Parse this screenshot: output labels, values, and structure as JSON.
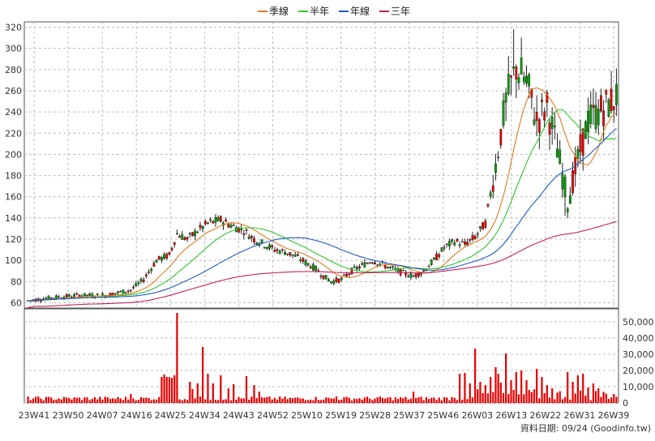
{
  "chart_data": [
    {
      "type": "candlestick",
      "legend_position": "top-center",
      "series": [
        {
          "name": "季線",
          "color": "#e07b20"
        },
        {
          "name": "半年",
          "color": "#2fc42f"
        },
        {
          "name": "年線",
          "color": "#1f5bc4"
        },
        {
          "name": "三年",
          "color": "#c8205a"
        }
      ],
      "up_color": "#e60000",
      "down_color": "#009900",
      "ylim": [
        55,
        325
      ],
      "y_ticks": [
        60,
        80,
        100,
        120,
        140,
        160,
        180,
        200,
        220,
        240,
        260,
        280,
        300,
        320
      ],
      "grid": true,
      "x_ticks": [
        "23W41",
        "23W50",
        "24W07",
        "24W16",
        "24W25",
        "24W34",
        "24W43",
        "24W52",
        "25W10",
        "25W19",
        "25W28",
        "25W37",
        "25W46",
        "26W03",
        "26W13",
        "26W22",
        "26W31",
        "26W39"
      ],
      "price_path": [
        [
          0,
          62
        ],
        [
          10,
          65
        ],
        [
          20,
          67
        ],
        [
          30,
          67
        ],
        [
          40,
          72
        ],
        [
          45,
          82
        ],
        [
          50,
          100
        ],
        [
          55,
          105
        ],
        [
          58,
          125
        ],
        [
          62,
          120
        ],
        [
          66,
          128
        ],
        [
          70,
          135
        ],
        [
          75,
          138
        ],
        [
          80,
          132
        ],
        [
          84,
          128
        ],
        [
          88,
          120
        ],
        [
          92,
          115
        ],
        [
          96,
          110
        ],
        [
          100,
          108
        ],
        [
          104,
          104
        ],
        [
          108,
          98
        ],
        [
          112,
          92
        ],
        [
          115,
          85
        ],
        [
          118,
          80
        ],
        [
          122,
          82
        ],
        [
          126,
          90
        ],
        [
          130,
          95
        ],
        [
          134,
          100
        ],
        [
          138,
          96
        ],
        [
          142,
          92
        ],
        [
          146,
          88
        ],
        [
          150,
          85
        ],
        [
          154,
          90
        ],
        [
          158,
          100
        ],
        [
          162,
          112
        ],
        [
          166,
          118
        ],
        [
          170,
          115
        ],
        [
          174,
          122
        ],
        [
          178,
          135
        ],
        [
          182,
          190
        ],
        [
          186,
          250
        ],
        [
          190,
          282
        ],
        [
          194,
          268
        ],
        [
          198,
          232
        ],
        [
          202,
          245
        ],
        [
          206,
          205
        ],
        [
          210,
          155
        ],
        [
          214,
          195
        ],
        [
          218,
          232
        ],
        [
          222,
          240
        ],
        [
          226,
          248
        ],
        [
          229,
          255
        ]
      ],
      "weekly_candle_count": 230,
      "last_label": "26W39",
      "volume": {
        "ylim": [
          0,
          56000
        ],
        "y_ticks": [
          0,
          10000,
          20000,
          30000,
          40000,
          50000
        ],
        "y_tick_labels": [
          "0",
          "10,000",
          "20,000",
          "30,000",
          "40,000",
          "50,000"
        ],
        "color": "#e60000",
        "spikes": [
          [
            40,
            5500
          ],
          [
            52,
            16000
          ],
          [
            53,
            17500
          ],
          [
            54,
            16000
          ],
          [
            55,
            16000
          ],
          [
            56,
            15500
          ],
          [
            57,
            17000
          ],
          [
            58,
            55500
          ],
          [
            63,
            13000
          ],
          [
            64,
            8500
          ],
          [
            66,
            12000
          ],
          [
            68,
            34500
          ],
          [
            70,
            18000
          ],
          [
            72,
            12000
          ],
          [
            75,
            17000
          ],
          [
            78,
            9000
          ],
          [
            80,
            11500
          ],
          [
            85,
            16500
          ],
          [
            88,
            11000
          ],
          [
            90,
            7000
          ],
          [
            120,
            4000
          ],
          [
            150,
            7000
          ],
          [
            165,
            3500
          ],
          [
            168,
            18000
          ],
          [
            170,
            18500
          ],
          [
            172,
            12000
          ],
          [
            174,
            33500
          ],
          [
            176,
            13000
          ],
          [
            178,
            11000
          ],
          [
            180,
            16000
          ],
          [
            182,
            22000
          ],
          [
            183,
            18000
          ],
          [
            184,
            12500
          ],
          [
            186,
            30500
          ],
          [
            188,
            14000
          ],
          [
            190,
            19000
          ],
          [
            192,
            20000
          ],
          [
            194,
            14000
          ],
          [
            198,
            21000
          ],
          [
            200,
            16000
          ],
          [
            202,
            11000
          ],
          [
            204,
            9000
          ],
          [
            210,
            19000
          ],
          [
            212,
            13000
          ],
          [
            214,
            17000
          ],
          [
            216,
            18000
          ],
          [
            218,
            9500
          ],
          [
            220,
            12000
          ],
          [
            222,
            9000
          ]
        ],
        "base": 1500
      },
      "footer": "資料日期: 09/24  (Goodinfo.tw)"
    }
  ]
}
